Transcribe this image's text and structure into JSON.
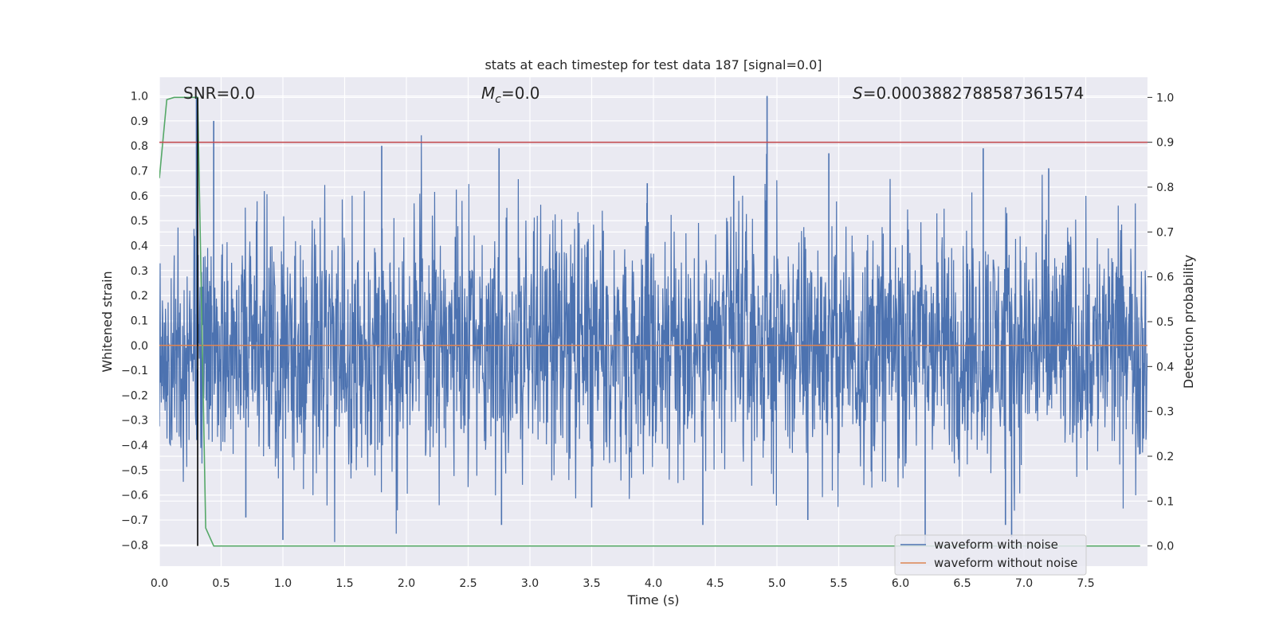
{
  "chart_data": {
    "type": "line",
    "title": "stats at each timestep for test data 187 [signal=0.0]",
    "xlabel": "Time (s)",
    "ylabel_left": "Whitened strain",
    "ylabel_right": "Detection probability",
    "xlim": [
      0.0,
      8.0
    ],
    "ylim_left": [
      -0.885,
      1.075
    ],
    "ylim_right": [
      -0.045,
      1.045
    ],
    "x_ticks": [
      "0.0",
      "0.5",
      "1.0",
      "1.5",
      "2.0",
      "2.5",
      "3.0",
      "3.5",
      "4.0",
      "4.5",
      "5.0",
      "5.5",
      "6.0",
      "6.5",
      "7.0",
      "7.5"
    ],
    "y_ticks_left": [
      "−0.8",
      "−0.7",
      "−0.6",
      "−0.5",
      "−0.4",
      "−0.3",
      "−0.2",
      "−0.1",
      "0.0",
      "0.1",
      "0.2",
      "0.3",
      "0.4",
      "0.5",
      "0.6",
      "0.7",
      "0.8",
      "0.9",
      "1.0"
    ],
    "y_ticks_right": [
      "0.0",
      "0.1",
      "0.2",
      "0.3",
      "0.4",
      "0.5",
      "0.6",
      "0.7",
      "0.8",
      "0.9",
      "1.0"
    ],
    "grid": true,
    "legend_position": "bottom-right",
    "annotations": {
      "snr": "SNR=0.0",
      "mc_symbol": "M",
      "mc_sub": "c",
      "mc_value": "=0.0",
      "s_symbol": "S",
      "s_value": "=0.0003882788587361574"
    },
    "series": [
      {
        "name": "waveform with noise",
        "color": "#4c72b0",
        "axis": "left",
        "style": "noise",
        "typical_range": [
          -0.42,
          0.42
        ],
        "spikes": [
          {
            "x": 0.44,
            "y": 0.9
          },
          {
            "x": 1.8,
            "y": 0.8
          },
          {
            "x": 2.75,
            "y": 0.79
          },
          {
            "x": 4.92,
            "y": 1.0
          },
          {
            "x": 5.42,
            "y": 0.77
          },
          {
            "x": 6.67,
            "y": 0.79
          },
          {
            "x": 1.0,
            "y": -0.78
          },
          {
            "x": 2.77,
            "y": -0.72
          },
          {
            "x": 4.4,
            "y": -0.72
          },
          {
            "x": 6.2,
            "y": -0.8
          },
          {
            "x": 6.9,
            "y": -0.77
          },
          {
            "x": 0.7,
            "y": -0.69
          },
          {
            "x": 3.5,
            "y": -0.65
          },
          {
            "x": 5.25,
            "y": -0.7
          },
          {
            "x": 6.85,
            "y": -0.72
          },
          {
            "x": 3.95,
            "y": 0.65
          },
          {
            "x": 4.65,
            "y": 0.68
          },
          {
            "x": 7.2,
            "y": 0.71
          },
          {
            "x": 0.3,
            "y": 1.0
          }
        ]
      },
      {
        "name": "waveform without noise",
        "color": "#dd8452",
        "axis": "left",
        "x": [
          0.0,
          8.0
        ],
        "y": [
          0.0,
          0.0
        ]
      },
      {
        "name": "",
        "color": "#55a868",
        "axis": "right",
        "x": [
          0.0,
          0.06,
          0.12,
          0.19,
          0.25,
          0.31,
          0.375,
          0.44,
          7.94
        ],
        "y": [
          0.82,
          0.995,
          1.0,
          1.0,
          1.0,
          1.0,
          0.04,
          0.0,
          0.0
        ]
      },
      {
        "name": "",
        "color": "#c44e52",
        "axis": "right",
        "x": [
          0.0,
          8.0
        ],
        "y": [
          0.9,
          0.9
        ]
      },
      {
        "name": "",
        "color": "#000000",
        "axis": "right",
        "x": [
          0.31,
          0.31
        ],
        "y": [
          0.0,
          1.0
        ]
      }
    ]
  }
}
